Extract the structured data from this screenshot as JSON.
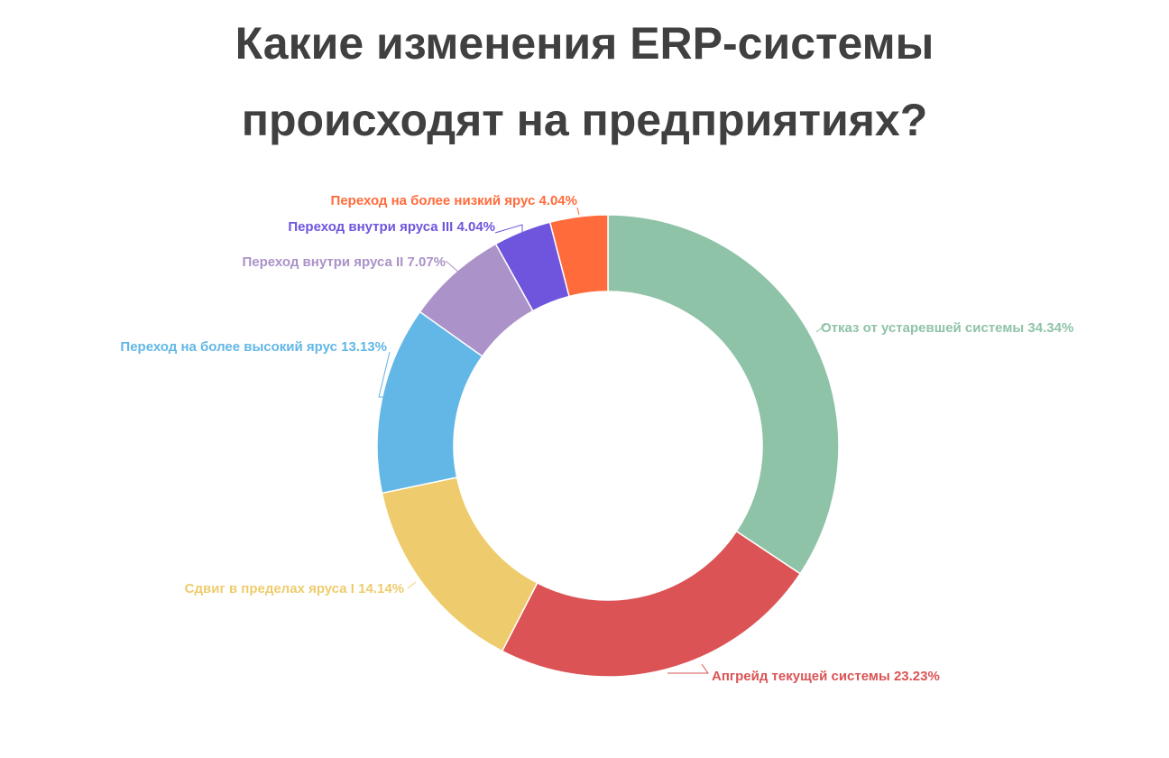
{
  "chart_data": {
    "type": "pie",
    "title": "Какие изменения ERP-системы",
    "subtitle": "происходят на предприятиях?",
    "legend": "none",
    "slices": [
      {
        "label": "Отказ от устаревшей системы 34.34%",
        "value": 34.34,
        "color": "#8fc3a7"
      },
      {
        "label": "Апгрейд текущей системы 23.23%",
        "value": 23.23,
        "color": "#db5355"
      },
      {
        "label": "Сдвиг в пределах яруса I 14.14%",
        "value": 14.14,
        "color": "#eecc6d"
      },
      {
        "label": "Переход на более высокий ярус 13.13%",
        "value": 13.13,
        "color": "#62b7e6"
      },
      {
        "label": "Переход внутри яруса II 7.07%",
        "value": 7.07,
        "color": "#ab92c8"
      },
      {
        "label": "Переход внутри яруса III 4.04%",
        "value": 4.04,
        "color": "#6f55dd"
      },
      {
        "label": "Переход на более низкий ярус 4.04%",
        "value": 4.04,
        "color": "#ff6b3b"
      }
    ]
  }
}
